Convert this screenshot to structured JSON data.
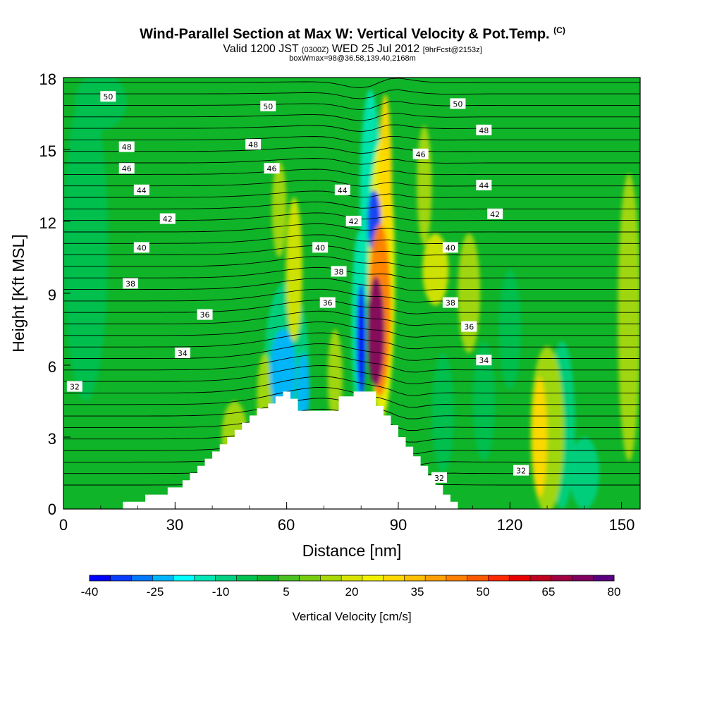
{
  "header": {
    "title": "Wind-Parallel Section at Max W: Vertical Velocity & Pot.Temp.",
    "copyright": "(C)",
    "subtitle_a": "Valid 1200 JST",
    "subtitle_b": "(0300Z)",
    "subtitle_c": "WED 25 Jul 2012",
    "subtitle_d": "[9hrFcst@2153z]",
    "subtitle2": "boxWmax=98@36.58,139.40,2168m"
  },
  "chart_data": {
    "type": "heatmap",
    "xlabel": "Distance [nm]",
    "ylabel": "Height [Kft MSL]",
    "xlim": [
      0,
      155
    ],
    "ylim": [
      0,
      18
    ],
    "x_ticks": [
      "0",
      "30",
      "60",
      "90",
      "120",
      "150"
    ],
    "y_ticks": [
      "0",
      "3",
      "6",
      "9",
      "12",
      "15",
      "18"
    ],
    "colorbar": {
      "title": "Vertical Velocity [cm/s]",
      "tick_labels": [
        "-40",
        "-25",
        "-10",
        "5",
        "20",
        "35",
        "50",
        "65",
        "80"
      ],
      "min": -40,
      "max": 80,
      "step": 5,
      "colors": [
        "#0000ff",
        "#0a3cff",
        "#0078ff",
        "#00b4ff",
        "#00ffff",
        "#00e6b4",
        "#00d080",
        "#00c050",
        "#10b428",
        "#48c020",
        "#78cc10",
        "#a8d808",
        "#d8e400",
        "#f0f000",
        "#ffd800",
        "#ffbe00",
        "#ffa000",
        "#ff8000",
        "#ff5a00",
        "#ff2800",
        "#e60000",
        "#c00020",
        "#a00040",
        "#800060",
        "#5a0080"
      ]
    },
    "background_color": "#10b428",
    "terrain": [
      [
        0,
        0
      ],
      [
        16,
        0
      ],
      [
        16,
        0.3
      ],
      [
        22,
        0.3
      ],
      [
        22,
        0.6
      ],
      [
        28,
        0.6
      ],
      [
        28,
        0.9
      ],
      [
        32,
        0.9
      ],
      [
        32,
        1.2
      ],
      [
        34,
        1.2
      ],
      [
        34,
        1.5
      ],
      [
        36,
        1.5
      ],
      [
        36,
        1.8
      ],
      [
        38,
        1.8
      ],
      [
        38,
        2.1
      ],
      [
        40,
        2.1
      ],
      [
        40,
        2.4
      ],
      [
        42,
        2.4
      ],
      [
        42,
        2.7
      ],
      [
        44,
        2.7
      ],
      [
        44,
        3.0
      ],
      [
        46,
        3.0
      ],
      [
        46,
        3.3
      ],
      [
        48,
        3.3
      ],
      [
        48,
        3.6
      ],
      [
        50,
        3.6
      ],
      [
        50,
        3.9
      ],
      [
        52,
        3.9
      ],
      [
        52,
        4.2
      ],
      [
        55,
        4.2
      ],
      [
        55,
        4.4
      ],
      [
        57,
        4.4
      ],
      [
        57,
        4.7
      ],
      [
        59,
        4.7
      ],
      [
        59,
        4.9
      ],
      [
        61,
        4.9
      ],
      [
        61,
        4.6
      ],
      [
        63,
        4.6
      ],
      [
        63,
        4.1
      ],
      [
        67,
        4.1
      ],
      [
        67,
        4.1
      ],
      [
        74,
        4.1
      ],
      [
        74,
        4.7
      ],
      [
        78,
        4.7
      ],
      [
        78,
        4.9
      ],
      [
        84,
        4.9
      ],
      [
        84,
        4.3
      ],
      [
        86,
        4.3
      ],
      [
        86,
        3.9
      ],
      [
        88,
        3.9
      ],
      [
        88,
        3.5
      ],
      [
        90,
        3.5
      ],
      [
        90,
        3.0
      ],
      [
        92,
        3.0
      ],
      [
        92,
        2.6
      ],
      [
        94,
        2.6
      ],
      [
        94,
        2.2
      ],
      [
        96,
        2.2
      ],
      [
        96,
        1.8
      ],
      [
        98,
        1.8
      ],
      [
        98,
        1.4
      ],
      [
        100,
        1.4
      ],
      [
        100,
        1.0
      ],
      [
        102,
        1.0
      ],
      [
        102,
        0.6
      ],
      [
        104,
        0.6
      ],
      [
        104,
        0.3
      ],
      [
        106,
        0.3
      ],
      [
        106,
        0
      ],
      [
        155,
        0
      ]
    ],
    "w_blobs": [
      {
        "x": 84,
        "y": 7.4,
        "rx": 2.3,
        "ry": 2.3,
        "w": 75
      },
      {
        "x": 85,
        "y": 8.3,
        "rx": 3.0,
        "ry": 3.6,
        "w": 48
      },
      {
        "x": 85.5,
        "y": 9.6,
        "rx": 3.6,
        "ry": 5.8,
        "w": 25
      },
      {
        "x": 86.5,
        "y": 13.5,
        "rx": 1.8,
        "ry": 3.8,
        "w": 30
      },
      {
        "x": 80,
        "y": 7.0,
        "rx": 1.2,
        "ry": 2.4,
        "w": -40
      },
      {
        "x": 79.5,
        "y": 7.8,
        "rx": 2.0,
        "ry": 3.8,
        "w": -15
      },
      {
        "x": 83.5,
        "y": 12.0,
        "rx": 1.8,
        "ry": 1.3,
        "w": -35
      },
      {
        "x": 82.5,
        "y": 13.0,
        "rx": 2.8,
        "ry": 4.5,
        "w": -15
      },
      {
        "x": 59,
        "y": 5.7,
        "rx": 3.5,
        "ry": 1.8,
        "w": -25
      },
      {
        "x": 60,
        "y": 6.0,
        "rx": 6.0,
        "ry": 3.5,
        "w": -8
      },
      {
        "x": 64.5,
        "y": 5.0,
        "rx": 1.6,
        "ry": 1.5,
        "w": -25
      },
      {
        "x": 62,
        "y": 10.0,
        "rx": 2.2,
        "ry": 3.0,
        "w": 22
      },
      {
        "x": 58,
        "y": 12.5,
        "rx": 2.0,
        "ry": 2.0,
        "w": 18
      },
      {
        "x": 73,
        "y": 5.5,
        "rx": 2.0,
        "ry": 2.0,
        "w": 15
      },
      {
        "x": 100,
        "y": 10.0,
        "rx": 3.5,
        "ry": 1.5,
        "w": 22
      },
      {
        "x": 97,
        "y": 13.5,
        "rx": 2.0,
        "ry": 2.5,
        "w": 15
      },
      {
        "x": 109,
        "y": 9.0,
        "rx": 3.0,
        "ry": 2.5,
        "w": 15
      },
      {
        "x": 128,
        "y": 3.0,
        "rx": 2.0,
        "ry": 2.5,
        "w": 30
      },
      {
        "x": 130,
        "y": 3.3,
        "rx": 4.5,
        "ry": 3.5,
        "w": 15
      },
      {
        "x": 134,
        "y": 3.5,
        "rx": 3.5,
        "ry": 3.5,
        "w": -10
      },
      {
        "x": 140,
        "y": 1.5,
        "rx": 4.0,
        "ry": 1.5,
        "w": -10
      },
      {
        "x": 102,
        "y": 4.0,
        "rx": 3.0,
        "ry": 2.5,
        "w": -5
      },
      {
        "x": 113,
        "y": 4.5,
        "rx": 3.0,
        "ry": 2.5,
        "w": -5
      },
      {
        "x": 6,
        "y": 11.0,
        "rx": 6.0,
        "ry": 6.5,
        "w": -5
      },
      {
        "x": 10,
        "y": 17.0,
        "rx": 7.0,
        "ry": 1.2,
        "w": -5
      },
      {
        "x": 152,
        "y": 8.0,
        "rx": 3.0,
        "ry": 6.0,
        "w": 15
      },
      {
        "x": 46,
        "y": 3.0,
        "rx": 3.5,
        "ry": 1.5,
        "w": 15
      },
      {
        "x": 54,
        "y": 4.5,
        "rx": 2.0,
        "ry": 2.0,
        "w": 18
      },
      {
        "x": 120,
        "y": 7.5,
        "rx": 3.0,
        "ry": 2.5,
        "w": -5
      }
    ],
    "theta_label_values": [
      "50",
      "50",
      "50",
      "48",
      "48",
      "48",
      "46",
      "46",
      "46",
      "44",
      "44",
      "44",
      "42",
      "42",
      "42",
      "40",
      "40",
      "40",
      "38",
      "38",
      "38",
      "36",
      "36",
      "36",
      "34",
      "34",
      "32",
      "32",
      "32"
    ]
  }
}
